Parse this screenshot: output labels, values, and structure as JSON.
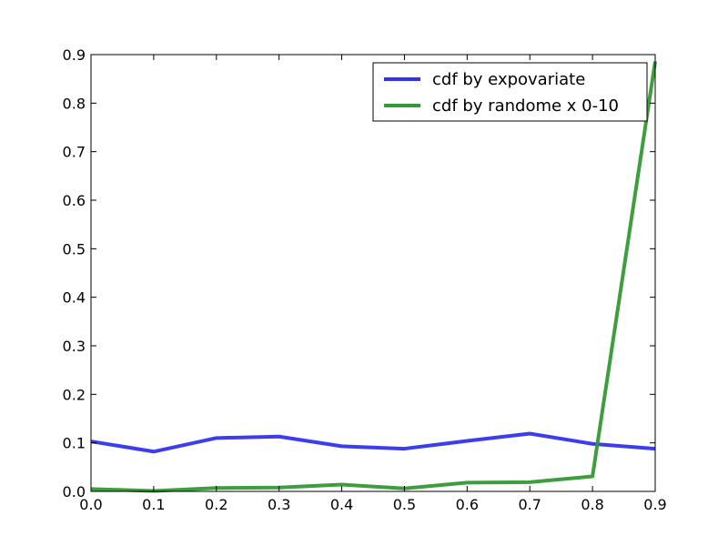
{
  "chart_data": {
    "type": "line",
    "x": [
      0.0,
      0.1,
      0.2,
      0.3,
      0.4,
      0.5,
      0.6,
      0.7,
      0.8,
      0.9
    ],
    "xlim": [
      0.0,
      0.9
    ],
    "ylim": [
      0.0,
      0.9
    ],
    "x_ticks": [
      "0.0",
      "0.1",
      "0.2",
      "0.3",
      "0.4",
      "0.5",
      "0.6",
      "0.7",
      "0.8",
      "0.9"
    ],
    "y_ticks": [
      "0.0",
      "0.1",
      "0.2",
      "0.3",
      "0.4",
      "0.5",
      "0.6",
      "0.7",
      "0.8",
      "0.9"
    ],
    "grid": false,
    "legend_position": "top-right",
    "series": [
      {
        "name": "cdf by expovariate",
        "color": "#3333ee",
        "values": [
          0.103,
          0.082,
          0.11,
          0.113,
          0.093,
          0.088,
          0.104,
          0.119,
          0.098,
          0.088
        ]
      },
      {
        "name": "cdf by randome x 0-10",
        "color": "#339933",
        "values": [
          0.005,
          0.001,
          0.007,
          0.008,
          0.014,
          0.006,
          0.018,
          0.019,
          0.031,
          0.886
        ]
      }
    ]
  }
}
